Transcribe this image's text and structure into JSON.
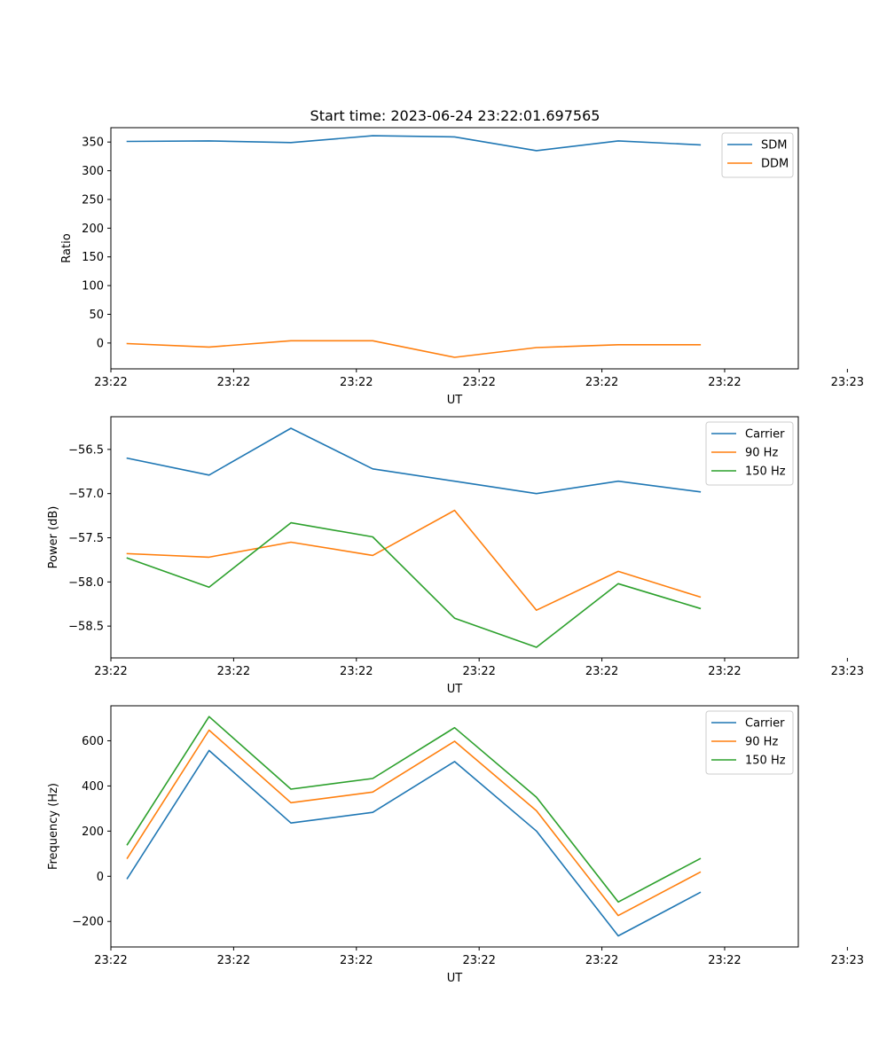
{
  "figure": {
    "title": "Start time: 2023-06-24 23:22:01.697565"
  },
  "colors": {
    "blue": "#1f77b4",
    "orange": "#ff7f0e",
    "green": "#2ca02c"
  },
  "chart_data": [
    {
      "type": "line",
      "title": "Start time: 2023-06-24 23:22:01.697565",
      "xlabel": "UT",
      "ylabel": "Ratio",
      "x": [
        1,
        2,
        3,
        4,
        5,
        6,
        7,
        8
      ],
      "xlim": [
        0.8,
        9.2
      ],
      "ylim": [
        -45,
        375
      ],
      "xticks": [
        0.8,
        2.3,
        3.8,
        5.3,
        6.8,
        8.3,
        9.8
      ],
      "xticklabels": [
        "23:22",
        "23:22",
        "23:22",
        "23:22",
        "23:22",
        "23:22",
        "23:23"
      ],
      "yticks": [
        0,
        50,
        100,
        150,
        200,
        250,
        300,
        350
      ],
      "yticklabels": [
        "0",
        "50",
        "100",
        "150",
        "200",
        "250",
        "300",
        "350"
      ],
      "legend_position": "top-right",
      "series": [
        {
          "name": "SDM",
          "color": "#1f77b4",
          "values": [
            351,
            352,
            349,
            361,
            359,
            335,
            352,
            345
          ]
        },
        {
          "name": "DDM",
          "color": "#ff7f0e",
          "values": [
            -1,
            -7,
            4,
            4,
            -25,
            -8,
            -3,
            -3
          ]
        }
      ]
    },
    {
      "type": "line",
      "title": "",
      "xlabel": "UT",
      "ylabel": "Power (dB)",
      "x": [
        1,
        2,
        3,
        4,
        5,
        6,
        7,
        8
      ],
      "xlim": [
        0.8,
        9.2
      ],
      "ylim": [
        -58.86,
        -56.13
      ],
      "xticks": [
        0.8,
        2.3,
        3.8,
        5.3,
        6.8,
        8.3,
        9.8
      ],
      "xticklabels": [
        "23:22",
        "23:22",
        "23:22",
        "23:22",
        "23:22",
        "23:22",
        "23:23"
      ],
      "yticks": [
        -56.5,
        -57.0,
        -57.5,
        -58.0,
        -58.5
      ],
      "yticklabels": [
        "−56.5",
        "−57.0",
        "−57.5",
        "−58.0",
        "−58.5"
      ],
      "legend_position": "top-right",
      "series": [
        {
          "name": "Carrier",
          "color": "#1f77b4",
          "values": [
            -56.6,
            -56.79,
            -56.26,
            -56.72,
            -56.86,
            -57.0,
            -56.86,
            -56.98
          ]
        },
        {
          "name": "90 Hz",
          "color": "#ff7f0e",
          "values": [
            -57.68,
            -57.72,
            -57.55,
            -57.7,
            -57.19,
            -58.32,
            -57.88,
            -58.17
          ]
        },
        {
          "name": "150 Hz",
          "color": "#2ca02c",
          "values": [
            -57.73,
            -58.06,
            -57.33,
            -57.49,
            -58.41,
            -58.74,
            -58.02,
            -58.3
          ]
        }
      ]
    },
    {
      "type": "line",
      "title": "",
      "xlabel": "UT",
      "ylabel": "Frequency (Hz)",
      "x": [
        1,
        2,
        3,
        4,
        5,
        6,
        7,
        8
      ],
      "xlim": [
        0.8,
        9.2
      ],
      "ylim": [
        -313,
        755
      ],
      "xticks": [
        0.8,
        2.3,
        3.8,
        5.3,
        6.8,
        8.3,
        9.8
      ],
      "xticklabels": [
        "23:22",
        "23:22",
        "23:22",
        "23:22",
        "23:22",
        "23:22",
        "23:23"
      ],
      "yticks": [
        -200,
        0,
        200,
        400,
        600
      ],
      "yticklabels": [
        "−200",
        "0",
        "200",
        "400",
        "600"
      ],
      "legend_position": "top-right",
      "series": [
        {
          "name": "Carrier",
          "color": "#1f77b4",
          "values": [
            -10,
            557,
            236,
            283,
            508,
            200,
            -264,
            -72
          ]
        },
        {
          "name": "90 Hz",
          "color": "#ff7f0e",
          "values": [
            80,
            647,
            326,
            373,
            598,
            290,
            -174,
            18
          ]
        },
        {
          "name": "150 Hz",
          "color": "#2ca02c",
          "values": [
            140,
            707,
            386,
            433,
            658,
            350,
            -114,
            78
          ]
        }
      ]
    }
  ]
}
